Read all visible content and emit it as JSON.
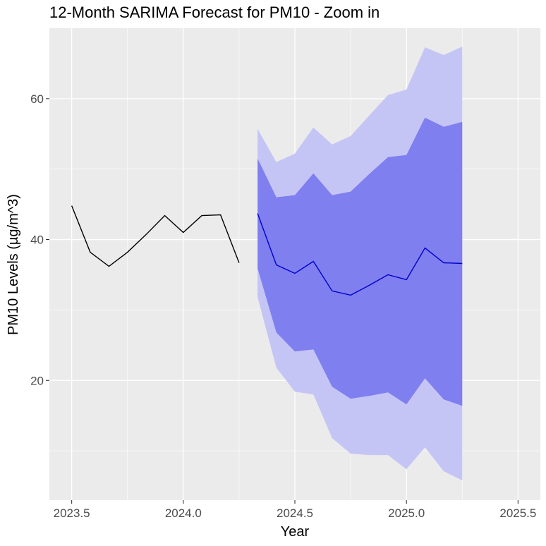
{
  "chart_data": {
    "type": "line",
    "title": "12-Month SARIMA Forecast for PM10 - Zoom in",
    "xlabel": "Year",
    "ylabel": "PM10 Levels (µg/m^3)",
    "xlim": [
      2023.4,
      2025.6
    ],
    "ylim": [
      3,
      70
    ],
    "x_ticks": [
      2023.5,
      2024.0,
      2024.5,
      2025.0,
      2025.5
    ],
    "x_tick_labels": [
      "2023.5",
      "2024.0",
      "2024.5",
      "2025.0",
      "2025.5"
    ],
    "y_ticks": [
      20,
      40,
      60
    ],
    "y_tick_labels": [
      "20",
      "40",
      "60"
    ],
    "grid": true,
    "colors": {
      "panel_background": "#ebebeb",
      "grid_major": "#ffffff",
      "observed_line": "#000000",
      "forecast_line": "#0000cc",
      "interval_80": "#7f7fef",
      "interval_95": "#c5c5f5"
    },
    "observed": {
      "x": [
        2023.5,
        2023.583,
        2023.667,
        2023.75,
        2023.833,
        2023.917,
        2024.0,
        2024.083,
        2024.167,
        2024.25
      ],
      "y": [
        44.8,
        38.2,
        36.2,
        38.2,
        40.7,
        43.4,
        41.0,
        43.4,
        43.5,
        36.7
      ]
    },
    "forecast": {
      "x": [
        2024.333,
        2024.417,
        2024.5,
        2024.583,
        2024.667,
        2024.75,
        2024.833,
        2024.917,
        2025.0,
        2025.083,
        2025.167,
        2025.25
      ],
      "mean": [
        43.7,
        36.4,
        35.2,
        36.9,
        32.7,
        32.1,
        33.5,
        35.0,
        34.3,
        38.8,
        36.7,
        36.6
      ],
      "lo80": [
        35.9,
        26.8,
        24.1,
        24.4,
        19.1,
        17.4,
        17.8,
        18.3,
        16.6,
        20.3,
        17.3,
        16.4
      ],
      "hi80": [
        51.5,
        46.0,
        46.3,
        49.4,
        46.3,
        46.8,
        49.3,
        51.7,
        52.0,
        57.3,
        56.0,
        56.7
      ],
      "lo95": [
        31.8,
        21.8,
        18.4,
        18.0,
        11.8,
        9.6,
        9.4,
        9.4,
        7.4,
        10.5,
        7.1,
        5.8
      ],
      "hi95": [
        55.7,
        51.0,
        52.2,
        55.9,
        53.5,
        54.7,
        57.6,
        60.5,
        61.3,
        67.3,
        66.2,
        67.4
      ]
    }
  }
}
